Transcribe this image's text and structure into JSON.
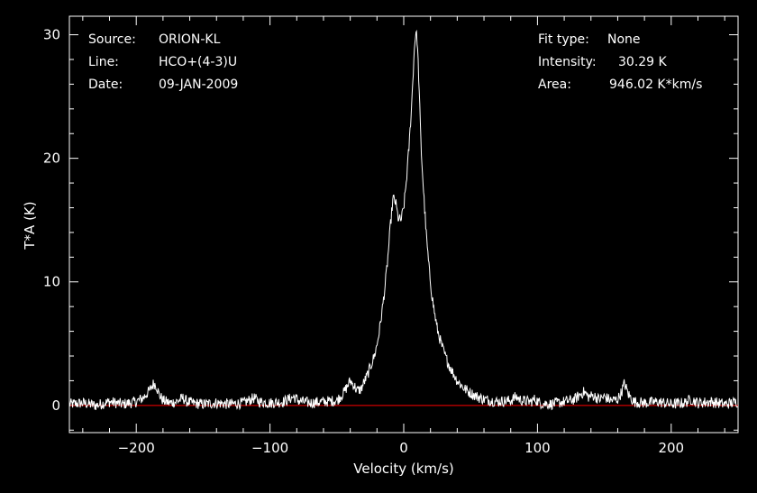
{
  "info": {
    "source_label": "Source:",
    "source_value": "ORION-KL",
    "line_label": "Line:",
    "line_value": "HCO+(4-3)U",
    "date_label": "Date:",
    "date_value": "09-JAN-2009",
    "fit_label": "Fit type:",
    "fit_value": "None",
    "intensity_label": "Intensity:",
    "intensity_value": "30.29 K",
    "area_label": "Area:",
    "area_value": "946.02 K*km/s"
  },
  "colors": {
    "background": "#000000",
    "axes": "#ffffff",
    "spectrum": "#ffffff",
    "baseline": "#ff0000"
  },
  "chart_data": {
    "type": "line",
    "xlabel": "Velocity (km/s)",
    "ylabel": "T*A (K)",
    "xlim": [
      -250,
      250
    ],
    "ylim": [
      -2.2,
      31.5
    ],
    "xticks": [
      -200,
      -100,
      0,
      100,
      200
    ],
    "yticks": [
      0,
      10,
      20,
      30
    ],
    "baseline_y": 0,
    "series": [
      {
        "x": [
          -250,
          -240,
          -230,
          -220,
          -210,
          -200,
          -195,
          -190,
          -187,
          -185,
          -183,
          -180,
          -175,
          -170,
          -165,
          -162,
          -158,
          -150,
          -140,
          -130,
          -120,
          -112,
          -108,
          -100,
          -90,
          -82,
          -79,
          -75,
          -70,
          -60,
          -50,
          -45,
          -42,
          -40,
          -37,
          -35,
          -32,
          -30,
          -27,
          -25,
          -22,
          -20,
          -18,
          -16,
          -14,
          -12,
          -10,
          -8,
          -6,
          -5,
          -4,
          -2,
          0,
          2,
          4,
          6,
          7,
          8,
          9,
          10,
          11,
          12,
          13,
          15,
          17,
          19,
          21,
          23,
          25,
          28,
          31,
          35,
          40,
          45,
          50,
          55,
          60,
          70,
          80,
          84,
          88,
          95,
          98,
          102,
          110,
          120,
          128,
          132,
          135,
          138,
          142,
          146,
          150,
          155,
          160,
          163,
          165,
          168,
          172,
          180,
          190,
          200,
          210,
          215,
          220,
          230,
          240,
          250
        ],
        "y": [
          0.1,
          0.2,
          0,
          0.3,
          0.1,
          0.3,
          0.6,
          1.2,
          1.8,
          1.6,
          0.9,
          0.4,
          0.2,
          0.3,
          0.6,
          0.3,
          0.2,
          0.1,
          0.2,
          0.1,
          0.2,
          0.6,
          0.3,
          0.2,
          0.3,
          0.7,
          0.4,
          0.3,
          0.2,
          0.3,
          0.4,
          1.0,
          1.6,
          2.0,
          1.6,
          1.2,
          1.3,
          1.8,
          2.5,
          3.1,
          4.0,
          4.9,
          6.2,
          7.8,
          9.6,
          11.8,
          14.5,
          16.8,
          16.4,
          15.7,
          15.1,
          15.0,
          16.0,
          18.2,
          21.0,
          24.5,
          26.8,
          29.0,
          30.29,
          29.6,
          27.2,
          24.0,
          20.8,
          17.0,
          13.6,
          11.0,
          9.0,
          7.5,
          6.2,
          5.0,
          4.0,
          3.0,
          2.0,
          1.4,
          1.0,
          0.7,
          0.5,
          0.3,
          0.4,
          0.7,
          0.4,
          0.3,
          0.5,
          0.2,
          0.1,
          0.3,
          0.5,
          0.9,
          1.1,
          0.7,
          0.8,
          0.5,
          0.7,
          0.4,
          0.5,
          1.1,
          1.8,
          0.9,
          0.3,
          0.2,
          0.3,
          0.1,
          0.2,
          0.5,
          0.2,
          0.3,
          0.1,
          0.3
        ]
      }
    ]
  }
}
